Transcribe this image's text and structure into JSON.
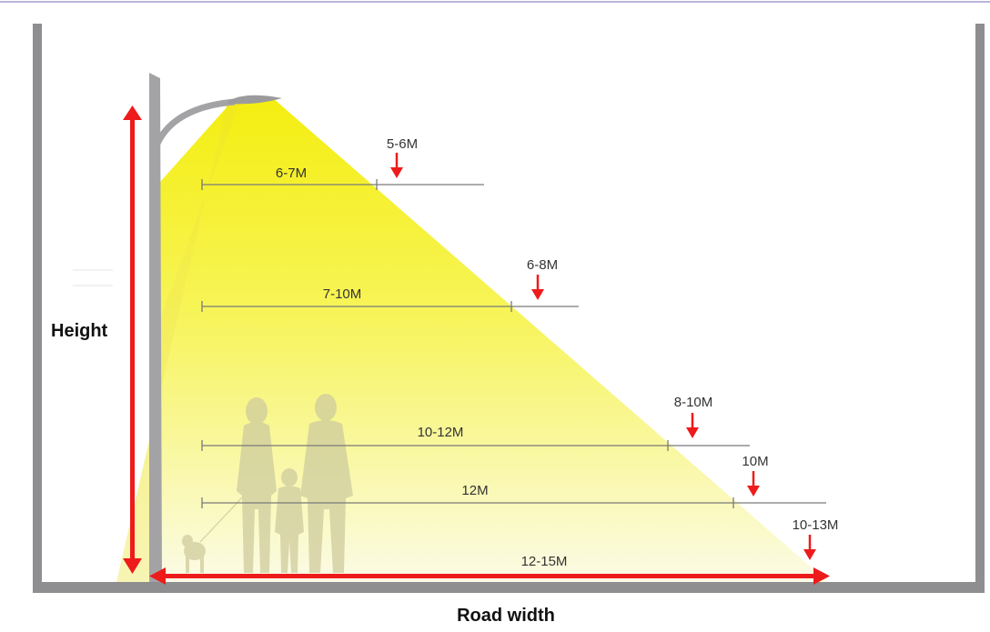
{
  "labels": {
    "height": "Height",
    "road_width": "Road width"
  },
  "rows": [
    {
      "span": "6-7M",
      "recommended": "5-6M"
    },
    {
      "span": "7-10M",
      "recommended": "6-8M"
    },
    {
      "span": "10-12M",
      "recommended": "8-10M"
    },
    {
      "span": "12M",
      "recommended": "10M"
    },
    {
      "span": "12-15M",
      "recommended": "10-13M"
    }
  ],
  "colors": {
    "light_beam": "#f7f21f",
    "arrow": "#ee1b1b",
    "wall": "#8e8e90",
    "pole": "#a3a3a5",
    "silhouette": "#c9c6a4",
    "dim_line": "#7a7a7a"
  }
}
